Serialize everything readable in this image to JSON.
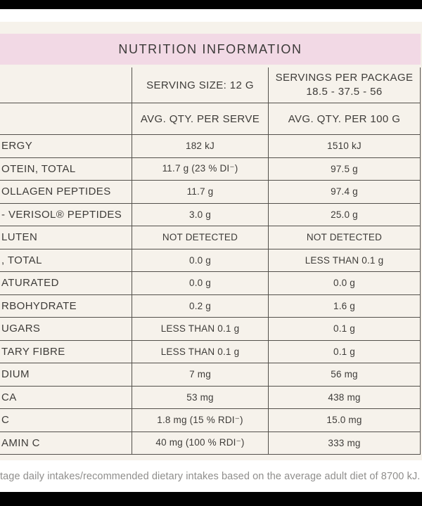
{
  "title": "NUTRITION INFORMATION",
  "table": {
    "header": {
      "serve_col_title": "SERVING SIZE: 12 G",
      "package_col_line1": "SERVINGS PER PACKAGE",
      "package_col_line2": "18.5 - 37.5 - 56",
      "serve_col_subtitle": "AVG. QTY. PER SERVE",
      "package_col_subtitle": "AVG. QTY. PER 100 G"
    },
    "rows": [
      {
        "label": "ERGY",
        "per_serve": "182 kJ",
        "per_100g": "1510 kJ"
      },
      {
        "label": "OTEIN, TOTAL",
        "per_serve": "11.7 g (23 % DI⁻)",
        "per_100g": "97.5 g"
      },
      {
        "label": "OLLAGEN PEPTIDES",
        "per_serve": "11.7 g",
        "per_100g": "97.4 g"
      },
      {
        "label": "- VERISOL® PEPTIDES",
        "per_serve": "3.0 g",
        "per_100g": "25.0 g"
      },
      {
        "label": "LUTEN",
        "per_serve": "NOT DETECTED",
        "per_100g": "NOT DETECTED"
      },
      {
        "label": ", TOTAL",
        "per_serve": "0.0 g",
        "per_100g": "LESS THAN 0.1 g"
      },
      {
        "label": "ATURATED",
        "per_serve": "0.0 g",
        "per_100g": "0.0 g"
      },
      {
        "label": "RBOHYDRATE",
        "per_serve": "0.2 g",
        "per_100g": "1.6 g"
      },
      {
        "label": "UGARS",
        "per_serve": "LESS THAN 0.1 g",
        "per_100g": "0.1 g"
      },
      {
        "label": "TARY FIBRE",
        "per_serve": "LESS THAN 0.1 g",
        "per_100g": "0.1 g"
      },
      {
        "label": "DIUM",
        "per_serve": "7 mg",
        "per_100g": "56 mg"
      },
      {
        "label": "CA",
        "per_serve": "53 mg",
        "per_100g": "438 mg"
      },
      {
        "label": "C",
        "per_serve": "1.8 mg (15 % RDI⁻)",
        "per_100g": "15.0 mg"
      },
      {
        "label": "AMIN C",
        "per_serve": "40 mg (100 % RDI⁻)",
        "per_100g": "333 mg"
      }
    ]
  },
  "footnote": "tage daily intakes/recommended dietary intakes based on the average adult diet of 8700 kJ.",
  "colors": {
    "background_cream": "#f6f2eb",
    "title_band_pink": "#f2d9e5",
    "border_gray": "#53504b",
    "text_dark": "#3e3c39",
    "footnote_gray": "#8f8e8c",
    "band_black": "#000000",
    "band_white": "#ffffff"
  }
}
